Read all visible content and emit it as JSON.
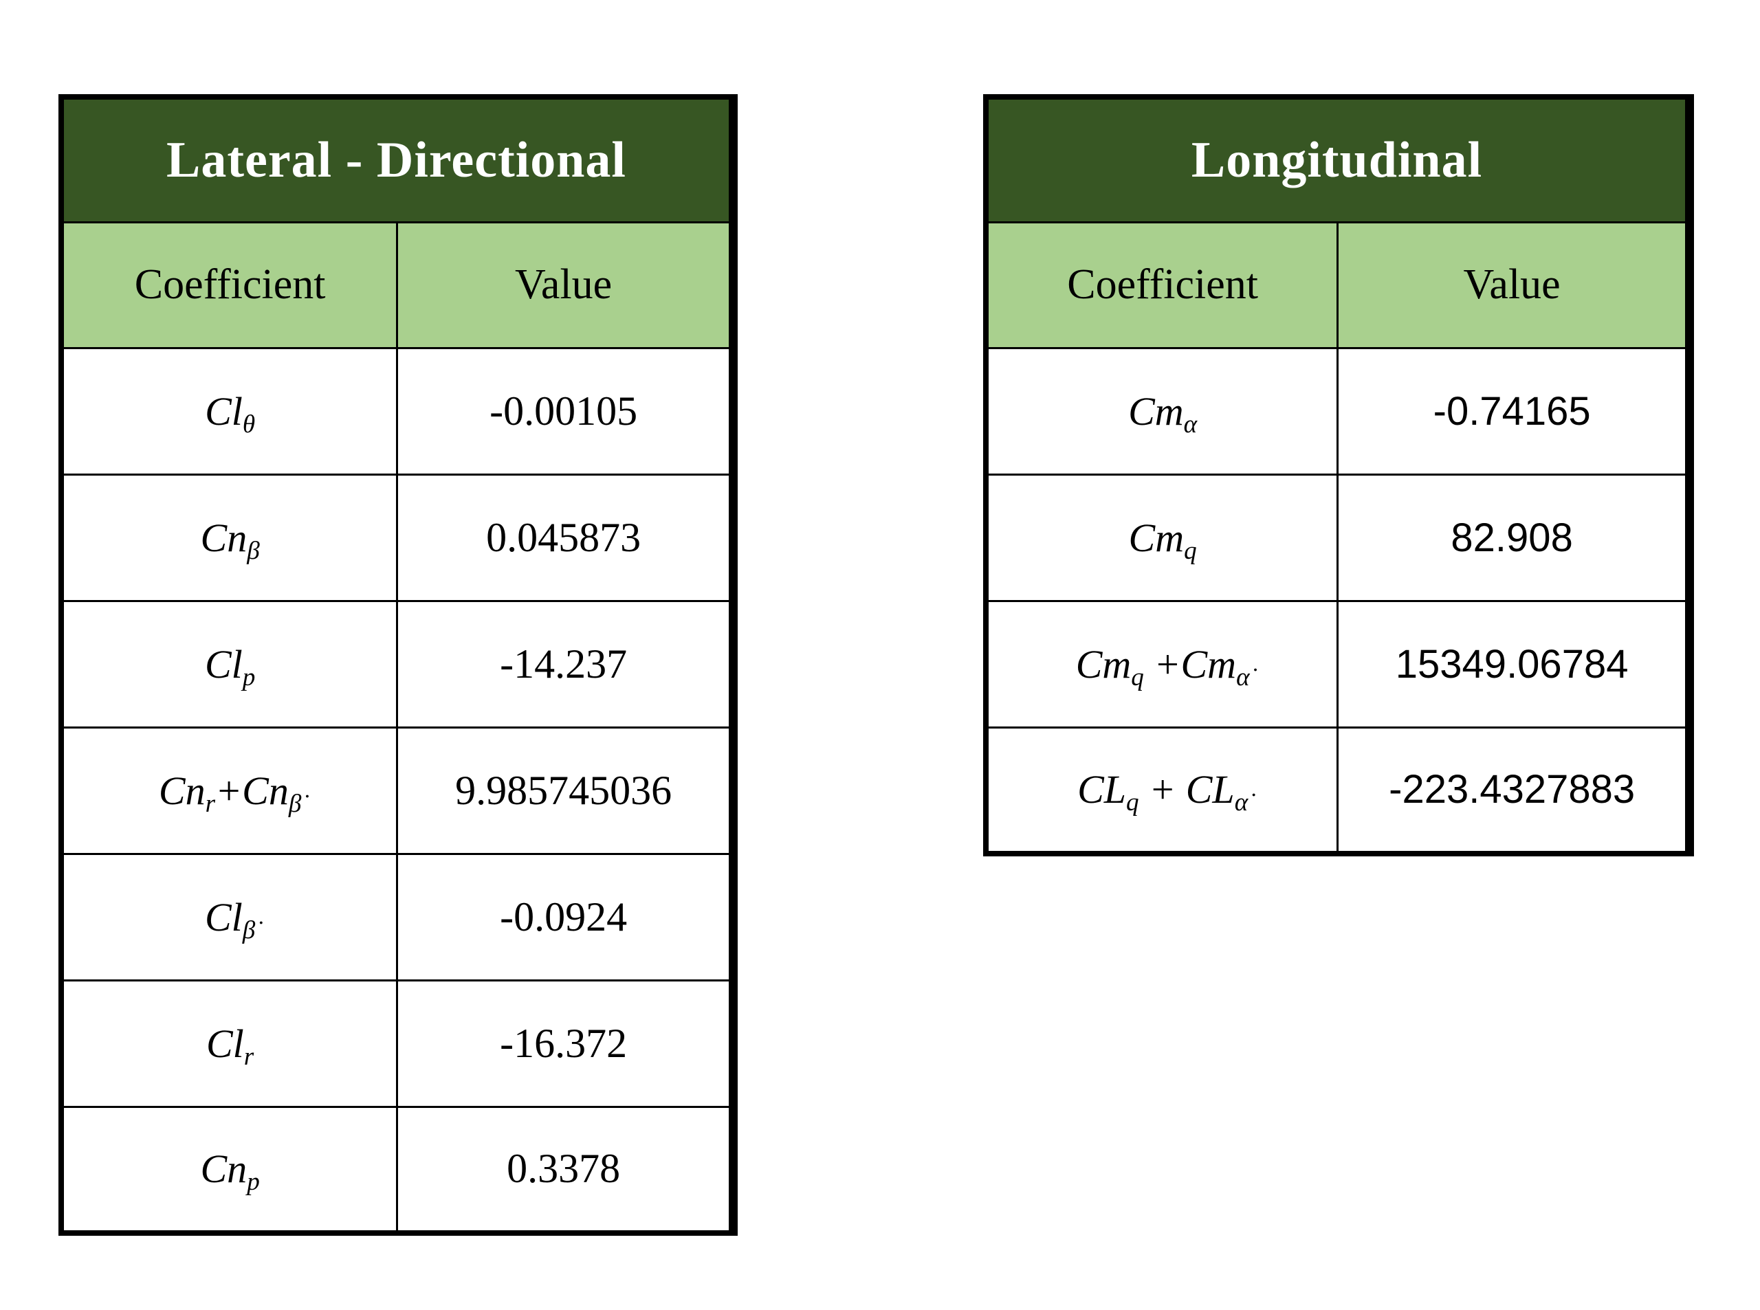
{
  "page": {
    "background": "#ffffff"
  },
  "colors": {
    "title_bg": "#375623",
    "title_text": "#ffffff",
    "header_bg": "#A9D08E",
    "border": "#000000",
    "body_text": "#000000"
  },
  "tables": [
    {
      "id": "lateral-directional",
      "title": "Lateral - Directional",
      "columns": [
        "Coefficient",
        "Value"
      ],
      "rows": [
        {
          "coefficient": "Cl_{θ}",
          "value": "-0.00105"
        },
        {
          "coefficient": "Cn_{β}",
          "value": "0.045873"
        },
        {
          "coefficient": "Cl_{p}",
          "value": "-14.237"
        },
        {
          "coefficient": "Cn_{r}+Cn_{β̇}",
          "value": "9.985745036"
        },
        {
          "coefficient": "Cl_{β̇}",
          "value": "-0.0924"
        },
        {
          "coefficient": "Cl_{r}",
          "value": "-16.372"
        },
        {
          "coefficient": "Cn_{p}",
          "value": "0.3378"
        }
      ]
    },
    {
      "id": "longitudinal",
      "title": "Longitudinal",
      "columns": [
        "Coefficient",
        "Value"
      ],
      "rows": [
        {
          "coefficient": "Cm_{α}",
          "value": "-0.74165"
        },
        {
          "coefficient": "Cm_{q}",
          "value": "82.908"
        },
        {
          "coefficient": "Cm_{q} +Cm_{α̇}",
          "value": "15349.06784"
        },
        {
          "coefficient": "CL_{q} + CL_{α̇}",
          "value": "-223.4327883"
        }
      ]
    }
  ]
}
